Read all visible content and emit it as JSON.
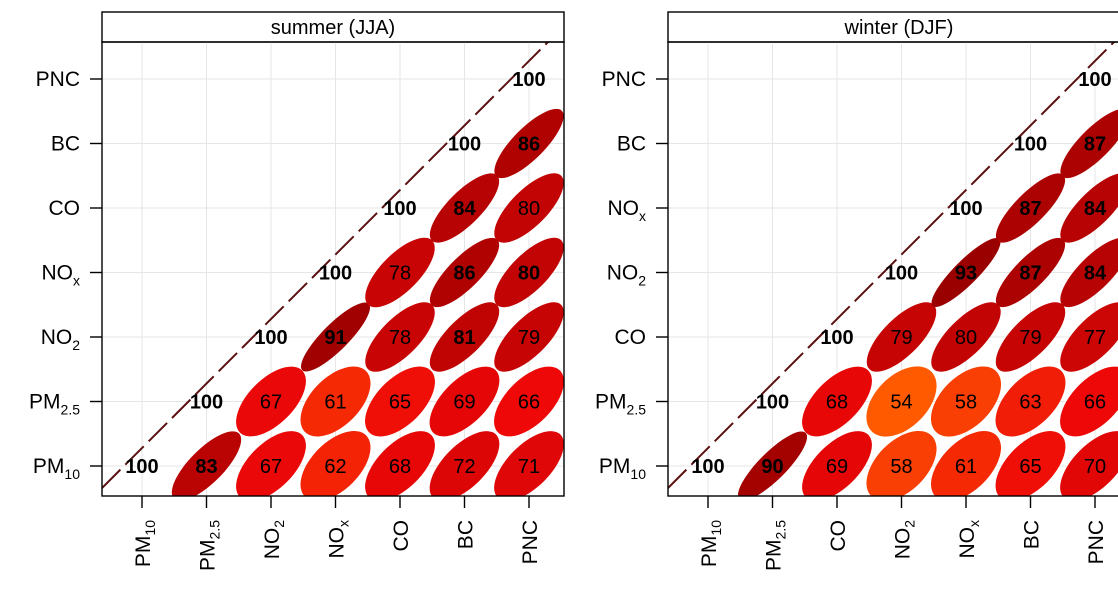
{
  "chart_data": [
    {
      "type": "heatmap",
      "subtype": "correlation-ellipse",
      "title": "summer (JJA)",
      "x_labels": [
        [
          "PM",
          "10"
        ],
        [
          "PM",
          "2.5"
        ],
        [
          "NO",
          "2"
        ],
        [
          "NO",
          "x"
        ],
        [
          "CO",
          ""
        ],
        [
          "BC",
          ""
        ],
        [
          "PNC",
          ""
        ]
      ],
      "y_labels": [
        [
          "PM",
          "10"
        ],
        [
          "PM",
          "2.5"
        ],
        [
          "NO",
          "2"
        ],
        [
          "NO",
          "x"
        ],
        [
          "CO",
          ""
        ],
        [
          "BC",
          ""
        ],
        [
          "PNC",
          ""
        ]
      ],
      "values": [
        [
          100,
          83,
          67,
          62,
          68,
          72,
          71
        ],
        [
          null,
          100,
          67,
          61,
          65,
          69,
          66
        ],
        [
          null,
          null,
          100,
          91,
          78,
          81,
          79
        ],
        [
          null,
          null,
          null,
          100,
          78,
          86,
          80
        ],
        [
          null,
          null,
          null,
          null,
          100,
          84,
          80
        ],
        [
          null,
          null,
          null,
          null,
          null,
          100,
          86
        ],
        [
          null,
          null,
          null,
          null,
          null,
          null,
          100
        ]
      ],
      "bold_values": [
        [
          true,
          true,
          false,
          false,
          false,
          false,
          false
        ],
        [
          false,
          true,
          false,
          false,
          false,
          false,
          false
        ],
        [
          false,
          false,
          true,
          true,
          false,
          true,
          false
        ],
        [
          false,
          false,
          false,
          true,
          false,
          true,
          true
        ],
        [
          false,
          false,
          false,
          false,
          true,
          true,
          false
        ],
        [
          false,
          false,
          false,
          false,
          false,
          true,
          true
        ],
        [
          false,
          false,
          false,
          false,
          false,
          false,
          true
        ]
      ]
    },
    {
      "type": "heatmap",
      "subtype": "correlation-ellipse",
      "title": "winter (DJF)",
      "x_labels": [
        [
          "PM",
          "10"
        ],
        [
          "PM",
          "2.5"
        ],
        [
          "CO",
          ""
        ],
        [
          "NO",
          "2"
        ],
        [
          "NO",
          "x"
        ],
        [
          "BC",
          ""
        ],
        [
          "PNC",
          ""
        ]
      ],
      "y_labels": [
        [
          "PM",
          "10"
        ],
        [
          "PM",
          "2.5"
        ],
        [
          "CO",
          ""
        ],
        [
          "NO",
          "2"
        ],
        [
          "NO",
          "x"
        ],
        [
          "BC",
          ""
        ],
        [
          "PNC",
          ""
        ]
      ],
      "values": [
        [
          100,
          90,
          69,
          58,
          61,
          65,
          70
        ],
        [
          null,
          100,
          68,
          54,
          58,
          63,
          66
        ],
        [
          null,
          null,
          100,
          79,
          80,
          79,
          77
        ],
        [
          null,
          null,
          null,
          100,
          93,
          87,
          84
        ],
        [
          null,
          null,
          null,
          null,
          100,
          87,
          84
        ],
        [
          null,
          null,
          null,
          null,
          null,
          100,
          87
        ],
        [
          null,
          null,
          null,
          null,
          null,
          null,
          100
        ]
      ],
      "bold_values": [
        [
          true,
          true,
          false,
          false,
          false,
          false,
          false
        ],
        [
          false,
          true,
          false,
          false,
          false,
          false,
          false
        ],
        [
          false,
          false,
          true,
          false,
          false,
          false,
          false
        ],
        [
          false,
          false,
          false,
          true,
          true,
          true,
          true
        ],
        [
          false,
          false,
          false,
          false,
          true,
          true,
          true
        ],
        [
          false,
          false,
          false,
          false,
          false,
          true,
          true
        ],
        [
          false,
          false,
          false,
          false,
          false,
          false,
          true
        ]
      ]
    }
  ],
  "colors": {
    "low": "#ff5a00",
    "mid": "#ee0808",
    "high": "#9b0000",
    "diagonal_line": "#5a1010",
    "grid": "#e6e6e6",
    "strip_background": "#ffffff"
  }
}
